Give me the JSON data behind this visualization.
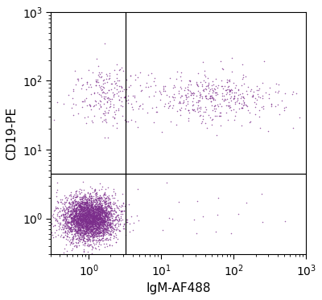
{
  "xlabel": "IgM-AF488",
  "ylabel": "CD19-PE",
  "xlim": [
    0.3,
    1000
  ],
  "ylim": [
    0.3,
    1000
  ],
  "xline": 3.2,
  "yline": 4.5,
  "point_color": "#7B2D8B",
  "point_alpha": 0.75,
  "point_size": 1.2,
  "background_color": "#ffffff",
  "clusters": [
    {
      "name": "bottom_left_main",
      "n": 3500,
      "x_log_mean": 0.0,
      "x_log_std": 0.18,
      "y_log_mean": 0.0,
      "y_log_std": 0.16
    },
    {
      "name": "upper_left",
      "n": 230,
      "x_log_mean": 0.25,
      "x_log_std": 0.25,
      "y_log_mean": 1.78,
      "y_log_std": 0.22
    },
    {
      "name": "upper_right",
      "n": 430,
      "x_log_mean": 1.7,
      "x_log_std": 0.5,
      "y_log_mean": 1.75,
      "y_log_std": 0.18
    },
    {
      "name": "bottom_right_sparse",
      "n": 20,
      "x_log_mean": 1.9,
      "x_log_std": 0.6,
      "y_log_mean": 0.05,
      "y_log_std": 0.3
    }
  ],
  "xticks": [
    1,
    10,
    100,
    1000
  ],
  "yticks": [
    1,
    10,
    100,
    1000
  ],
  "tick_labels": [
    "10$^0$",
    "10$^1$",
    "10$^2$",
    "10$^3$"
  ]
}
